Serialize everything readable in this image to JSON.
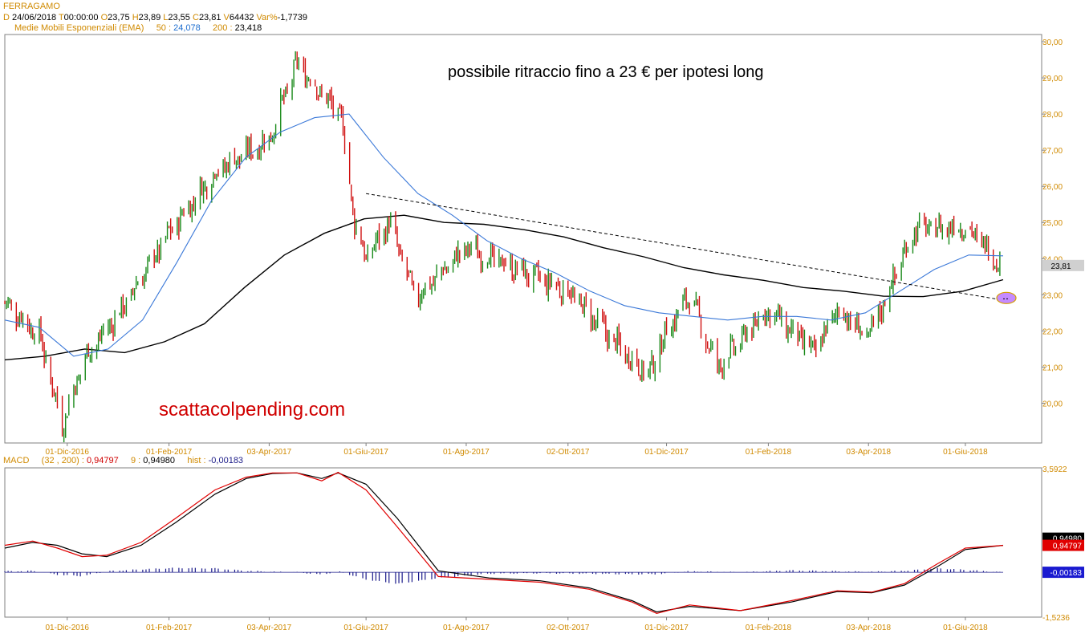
{
  "header": {
    "symbol": "FERRAGAMO",
    "ohlc": {
      "d_label": "D",
      "date": "24/06/2018",
      "t_label": "T",
      "time": "00:00:00",
      "o_label": "O",
      "open": "23,75",
      "h_label": "H",
      "high": "23,89",
      "l_label": "L",
      "low": "23,55",
      "c_label": "C",
      "close": "23,81",
      "v_label": "V",
      "volume": "64432",
      "var_label": "Var%",
      "var": "-1,7739"
    },
    "ema": {
      "label": "Medie Mobili Esponenziali (EMA)",
      "p1": "50 :",
      "v1": "24,078",
      "p2": "200 :",
      "v2": "23,418"
    }
  },
  "annotations": {
    "headline": "possibile ritraccio fino a 23 € per ipotesi long",
    "watermark": "scattacolpending.com"
  },
  "colors": {
    "up": "#1a8a1a",
    "down": "#d01010",
    "ema50": "#3a78d8",
    "ema200": "#000000",
    "axis_text": "#d08a00",
    "frame": "#808080",
    "last_price_bg": "#d0d0d0",
    "target_ellipse": "#c58aff",
    "macd_line": "#e00000",
    "signal_line": "#000000",
    "hist": "#1a1a8a"
  },
  "x_axis": {
    "labels": [
      "01-Dic-2016",
      "01-Feb-2017",
      "03-Apr-2017",
      "01-Giu-2017",
      "01-Ago-2017",
      "02-Ott-2017",
      "01-Dic-2017",
      "01-Feb-2018",
      "03-Apr-2018",
      "01-Giu-2018"
    ]
  },
  "chart_data": [
    {
      "type": "candlestick",
      "title": "FERRAGAMO",
      "y_ticks": [
        "20,00",
        "21,00",
        "22,00",
        "23,00",
        "24,00",
        "25,00",
        "26,00",
        "27,00",
        "28,00",
        "29,00",
        "30,00"
      ],
      "ylim": [
        18.9,
        30.2
      ],
      "last_price_label": "23,81",
      "price_path_approx": {
        "dates": [
          "2016-10-24",
          "2016-11-14",
          "2016-11-28",
          "2016-12-12",
          "2017-01-02",
          "2017-02-01",
          "2017-03-01",
          "2017-04-03",
          "2017-04-20",
          "2017-05-08",
          "2017-05-17",
          "2017-05-25",
          "2017-06-01",
          "2017-06-15",
          "2017-07-01",
          "2017-08-01",
          "2017-09-01",
          "2017-10-02",
          "2017-11-01",
          "2017-11-20",
          "2017-12-01",
          "2017-12-15",
          "2018-01-01",
          "2018-02-01",
          "2018-03-01",
          "2018-03-15",
          "2018-04-03",
          "2018-04-16",
          "2018-05-01",
          "2018-06-01",
          "2018-06-24"
        ],
        "close": [
          22.8,
          21.9,
          19.4,
          21.3,
          22.5,
          24.7,
          26.4,
          27.3,
          29.4,
          28.4,
          27.9,
          25.0,
          24.0,
          25.0,
          22.9,
          24.3,
          23.7,
          23.1,
          21.6,
          20.8,
          22.0,
          23.0,
          21.0,
          22.6,
          21.4,
          22.6,
          21.8,
          23.2,
          24.8,
          24.9,
          23.81
        ]
      },
      "series": [
        {
          "name": "50",
          "values_last": 24.078,
          "values": [
            22.3,
            22.1,
            21.3,
            21.5,
            22.3,
            23.9,
            25.6,
            26.8,
            27.5,
            27.9,
            28.0,
            26.8,
            25.8,
            25.2,
            24.5,
            24.0,
            23.6,
            23.1,
            22.7,
            22.5,
            22.4,
            22.3,
            22.4,
            22.4,
            22.3,
            22.5,
            23.1,
            23.7,
            24.1,
            24.078
          ]
        },
        {
          "name": "200",
          "values_last": 23.418,
          "values": [
            21.2,
            21.3,
            21.5,
            21.4,
            21.7,
            22.2,
            23.2,
            24.1,
            24.7,
            25.1,
            25.2,
            25.0,
            24.95,
            24.8,
            24.6,
            24.3,
            24.05,
            23.75,
            23.55,
            23.4,
            23.2,
            23.1,
            22.96,
            22.95,
            23.1,
            23.418
          ]
        }
      ],
      "trendline": {
        "style": "dashed",
        "start": {
          "date": "2017-06-01",
          "value": 25.8
        },
        "end": {
          "date": "2018-06-24",
          "value": 22.8
        }
      },
      "target_marker": {
        "value": 23.0
      }
    },
    {
      "type": "line",
      "title": "MACD",
      "params": "(32 , 200)",
      "macd_value": "0,94797",
      "signal_label": "9 :",
      "signal_value": "0,94980",
      "hist_label": "hist :",
      "hist_value": "-0,00183",
      "y_top_label": "3,5922",
      "y_bottom_label": "-1,5236",
      "ylim": [
        -1.5236,
        3.5922
      ],
      "dates": [
        "2016-10-24",
        "2016-11-10",
        "2016-11-25",
        "2016-12-10",
        "2016-12-25",
        "2017-01-15",
        "2017-02-05",
        "2017-03-01",
        "2017-03-20",
        "2017-04-05",
        "2017-04-20",
        "2017-05-05",
        "2017-05-15",
        "2017-06-01",
        "2017-06-20",
        "2017-07-15",
        "2017-08-15",
        "2017-09-15",
        "2017-10-15",
        "2017-11-10",
        "2017-11-25",
        "2017-12-15",
        "2018-01-15",
        "2018-02-15",
        "2018-03-15",
        "2018-04-05",
        "2018-04-25",
        "2018-05-15",
        "2018-06-01",
        "2018-06-24"
      ],
      "series": [
        {
          "name": "MACD",
          "values": [
            0.95,
            1.1,
            0.85,
            0.55,
            0.6,
            1.05,
            1.9,
            2.9,
            3.35,
            3.5,
            3.5,
            3.22,
            3.52,
            2.9,
            1.6,
            -0.15,
            -0.25,
            -0.35,
            -0.6,
            -1.05,
            -1.45,
            -1.15,
            -1.35,
            -1.0,
            -0.65,
            -0.7,
            -0.4,
            0.3,
            0.85,
            0.94797
          ]
        },
        {
          "name": "9",
          "values": [
            0.85,
            1.05,
            0.95,
            0.65,
            0.55,
            0.95,
            1.75,
            2.75,
            3.3,
            3.48,
            3.5,
            3.3,
            3.5,
            3.1,
            1.9,
            0.05,
            -0.2,
            -0.3,
            -0.55,
            -1.0,
            -1.4,
            -1.2,
            -1.35,
            -1.05,
            -0.68,
            -0.72,
            -0.45,
            0.2,
            0.8,
            0.9498
          ]
        }
      ],
      "histogram": {
        "name": "hist",
        "values": [
          0.02,
          0.03,
          -0.05,
          -0.08,
          0.02,
          0.06,
          0.09,
          0.08,
          0.03,
          0.01,
          0.0,
          -0.05,
          0.02,
          -0.15,
          -0.24,
          -0.12,
          -0.03,
          -0.02,
          -0.03,
          -0.04,
          -0.04,
          0.02,
          0.0,
          0.04,
          0.02,
          0.01,
          0.03,
          0.08,
          0.05,
          -0.00183
        ]
      }
    }
  ]
}
